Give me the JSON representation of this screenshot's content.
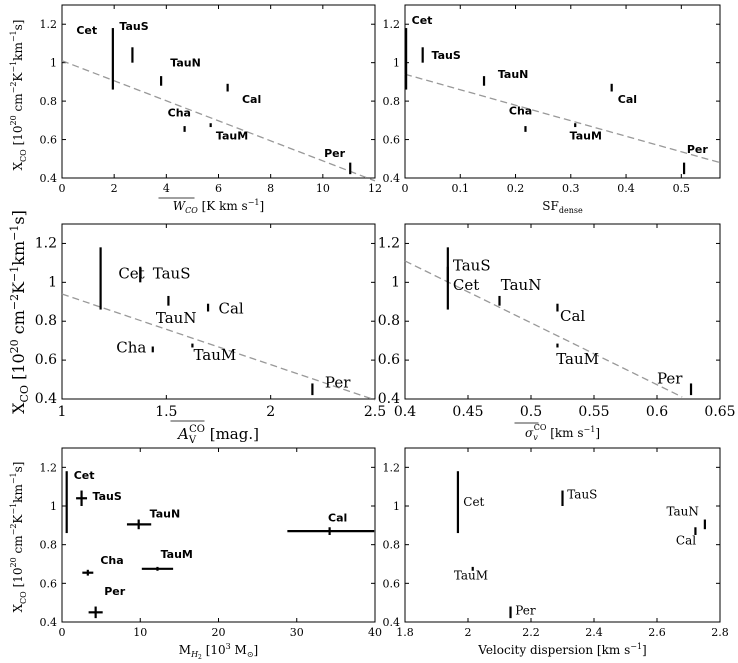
{
  "chart_data": [
    {
      "type": "scatter",
      "panel": "a",
      "ylabel": "X_CO [10^20 cm^-2 K^-1 km^-1 s]",
      "xlabel": "W_CO [K km s^-1]",
      "xlim": [
        0,
        12
      ],
      "ylim": [
        0.4,
        1.3
      ],
      "xticks": [
        0,
        2,
        4,
        6,
        8,
        10,
        12
      ],
      "yticks": [
        0.4,
        0.6,
        0.8,
        1,
        1.2
      ],
      "label_style": "sans-bold",
      "points": [
        {
          "name": "Cet",
          "x": 1.95,
          "y": 1.02,
          "yerr": [
            0.86,
            1.18
          ]
        },
        {
          "name": "TauS",
          "x": 2.7,
          "y": 1.04,
          "yerr": [
            1.0,
            1.08
          ]
        },
        {
          "name": "TauN",
          "x": 3.8,
          "y": 0.905,
          "yerr": [
            0.88,
            0.93
          ]
        },
        {
          "name": "Cal",
          "x": 6.35,
          "y": 0.87,
          "yerr": [
            0.85,
            0.89
          ]
        },
        {
          "name": "Cha",
          "x": 4.7,
          "y": 0.655,
          "yerr": [
            0.64,
            0.67
          ]
        },
        {
          "name": "TauM",
          "x": 5.7,
          "y": 0.675,
          "yerr": [
            0.665,
            0.685
          ]
        },
        {
          "name": "Per",
          "x": 11.05,
          "y": 0.45,
          "yerr": [
            0.42,
            0.48
          ]
        }
      ],
      "labels": [
        {
          "text": "Cet",
          "x": 0.55,
          "y": 1.15
        },
        {
          "text": "TauS",
          "x": 2.2,
          "y": 1.17
        },
        {
          "text": "TauN",
          "x": 4.15,
          "y": 0.98
        },
        {
          "text": "Cal",
          "x": 6.9,
          "y": 0.79
        },
        {
          "text": "Cha",
          "x": 4.05,
          "y": 0.72
        },
        {
          "text": "TauM",
          "x": 5.9,
          "y": 0.6
        },
        {
          "text": "Per",
          "x": 10.05,
          "y": 0.51
        }
      ],
      "trend": {
        "x": [
          0,
          12
        ],
        "y": [
          1.01,
          0.385
        ]
      }
    },
    {
      "type": "scatter",
      "panel": "b",
      "xlabel": "SF_dense",
      "xlim": [
        0,
        0.57
      ],
      "ylim": [
        0.4,
        1.3
      ],
      "xticks": [
        0,
        0.1,
        0.2,
        0.3,
        0.4,
        0.5
      ],
      "yticks": [
        0.4,
        0.6,
        0.8,
        1,
        1.2
      ],
      "label_style": "sans-bold",
      "points": [
        {
          "name": "Cet",
          "x": 0.002,
          "y": 1.02,
          "yerr": [
            0.86,
            1.18
          ]
        },
        {
          "name": "TauS",
          "x": 0.032,
          "y": 1.04,
          "yerr": [
            1.0,
            1.08
          ]
        },
        {
          "name": "TauN",
          "x": 0.143,
          "y": 0.905,
          "yerr": [
            0.88,
            0.93
          ]
        },
        {
          "name": "Cal",
          "x": 0.374,
          "y": 0.87,
          "yerr": [
            0.85,
            0.89
          ]
        },
        {
          "name": "Cha",
          "x": 0.218,
          "y": 0.655,
          "yerr": [
            0.64,
            0.67
          ]
        },
        {
          "name": "TauM",
          "x": 0.308,
          "y": 0.675,
          "yerr": [
            0.665,
            0.685
          ]
        },
        {
          "name": "Per",
          "x": 0.505,
          "y": 0.45,
          "yerr": [
            0.42,
            0.48
          ]
        }
      ],
      "labels": [
        {
          "text": "Cet",
          "x": 0.012,
          "y": 1.2
        },
        {
          "text": "TauS",
          "x": 0.048,
          "y": 1.02
        },
        {
          "text": "TauN",
          "x": 0.168,
          "y": 0.92
        },
        {
          "text": "Cal",
          "x": 0.385,
          "y": 0.79
        },
        {
          "text": "Cha",
          "x": 0.188,
          "y": 0.73
        },
        {
          "text": "TauM",
          "x": 0.298,
          "y": 0.6
        },
        {
          "text": "Per",
          "x": 0.51,
          "y": 0.53
        }
      ],
      "trend": {
        "x": [
          0,
          0.57
        ],
        "y": [
          0.94,
          0.48
        ]
      }
    },
    {
      "type": "scatter",
      "panel": "c",
      "ylabel": "X_CO [10^20 cm^-2 K^-1 km^-1 s]",
      "xlabel": "A_V^CO [mag.]",
      "xlim": [
        1,
        2.5
      ],
      "ylim": [
        0.4,
        1.3
      ],
      "xticks": [
        1,
        1.5,
        2,
        2.5
      ],
      "yticks": [
        0.4,
        0.6,
        0.8,
        1,
        1.2
      ],
      "label_style": "serif",
      "points": [
        {
          "name": "Cet",
          "x": 1.185,
          "y": 1.02,
          "yerr": [
            0.86,
            1.18
          ]
        },
        {
          "name": "TauS",
          "x": 1.375,
          "y": 1.04,
          "yerr": [
            1.0,
            1.08
          ]
        },
        {
          "name": "TauN",
          "x": 1.51,
          "y": 0.905,
          "yerr": [
            0.88,
            0.93
          ]
        },
        {
          "name": "Cal",
          "x": 1.7,
          "y": 0.87,
          "yerr": [
            0.85,
            0.89
          ]
        },
        {
          "name": "Cha",
          "x": 1.435,
          "y": 0.655,
          "yerr": [
            0.64,
            0.67
          ]
        },
        {
          "name": "TauM",
          "x": 1.625,
          "y": 0.675,
          "yerr": [
            0.665,
            0.685
          ]
        },
        {
          "name": "Per",
          "x": 2.2,
          "y": 0.45,
          "yerr": [
            0.42,
            0.48
          ]
        }
      ],
      "labels": [
        {
          "text": "Cet",
          "x": 1.27,
          "y": 1.02
        },
        {
          "text": "TauS",
          "x": 1.435,
          "y": 1.02
        },
        {
          "text": "TauN",
          "x": 1.45,
          "y": 0.79
        },
        {
          "text": "Cal",
          "x": 1.75,
          "y": 0.84
        },
        {
          "text": "Cha",
          "x": 1.26,
          "y": 0.64
        },
        {
          "text": "TauM",
          "x": 1.63,
          "y": 0.6
        },
        {
          "text": "Per",
          "x": 2.26,
          "y": 0.46
        }
      ],
      "trend": {
        "x": [
          1,
          2.5
        ],
        "y": [
          0.94,
          0.395
        ]
      }
    },
    {
      "type": "scatter",
      "panel": "d",
      "xlabel": "σ_v^CO [km s^-1]",
      "xlim": [
        0.4,
        0.65
      ],
      "ylim": [
        0.4,
        1.3
      ],
      "xticks": [
        0.4,
        0.45,
        0.5,
        0.55,
        0.6,
        0.65
      ],
      "yticks": [
        0.4,
        0.6,
        0.8,
        1,
        1.2
      ],
      "label_style": "serif",
      "points": [
        {
          "name": "Cet",
          "x": 0.434,
          "y": 1.02,
          "yerr": [
            0.86,
            1.18
          ]
        },
        {
          "name": "TauS",
          "x": 0.434,
          "y": 1.04,
          "yerr": [
            1.0,
            1.08
          ]
        },
        {
          "name": "TauN",
          "x": 0.475,
          "y": 0.905,
          "yerr": [
            0.88,
            0.93
          ]
        },
        {
          "name": "Cal",
          "x": 0.521,
          "y": 0.87,
          "yerr": [
            0.85,
            0.89
          ]
        },
        {
          "name": "TauM",
          "x": 0.521,
          "y": 0.675,
          "yerr": [
            0.665,
            0.685
          ]
        },
        {
          "name": "Per",
          "x": 0.627,
          "y": 0.45,
          "yerr": [
            0.42,
            0.48
          ]
        }
      ],
      "labels": [
        {
          "text": "TauS",
          "x": 0.438,
          "y": 1.06
        },
        {
          "text": "Cet",
          "x": 0.438,
          "y": 0.96
        },
        {
          "text": "TauN",
          "x": 0.476,
          "y": 0.96
        },
        {
          "text": "Cal",
          "x": 0.523,
          "y": 0.8
        },
        {
          "text": "TauM",
          "x": 0.52,
          "y": 0.58
        },
        {
          "text": "Per",
          "x": 0.6,
          "y": 0.48
        }
      ],
      "trend": {
        "x": [
          0.4,
          0.62
        ],
        "y": [
          1.11,
          0.41
        ]
      }
    },
    {
      "type": "scatter",
      "panel": "e",
      "ylabel": "X_CO [10^20 cm^-2 K^-1 km^-1 s]",
      "xlabel": "M_H2 [10^3 M_⊙]",
      "xlim": [
        0,
        40
      ],
      "ylim": [
        0.4,
        1.3
      ],
      "xticks": [
        0,
        10,
        20,
        30,
        40
      ],
      "yticks": [
        0.4,
        0.6,
        0.8,
        1,
        1.2
      ],
      "label_style": "sans-bold",
      "points": [
        {
          "name": "Cet",
          "x": 0.6,
          "y": 1.02,
          "yerr": [
            0.86,
            1.18
          ],
          "xerr": [
            0.6,
            0.6
          ]
        },
        {
          "name": "TauS",
          "x": 2.5,
          "y": 1.04,
          "yerr": [
            1.0,
            1.08
          ],
          "xerr": [
            1.8,
            3.2
          ]
        },
        {
          "name": "TauN",
          "x": 9.8,
          "y": 0.905,
          "yerr": [
            0.88,
            0.93
          ],
          "xerr": [
            8.3,
            11.4
          ]
        },
        {
          "name": "Cal",
          "x": 34.2,
          "y": 0.87,
          "yerr": [
            0.85,
            0.89
          ],
          "xerr": [
            28.8,
            39.9
          ]
        },
        {
          "name": "Cha",
          "x": 3.3,
          "y": 0.655,
          "yerr": [
            0.64,
            0.67
          ],
          "xerr": [
            2.6,
            4.0
          ]
        },
        {
          "name": "TauM",
          "x": 12.2,
          "y": 0.675,
          "yerr": [
            0.665,
            0.685
          ],
          "xerr": [
            10.2,
            14.2
          ]
        },
        {
          "name": "Per",
          "x": 4.3,
          "y": 0.45,
          "yerr": [
            0.42,
            0.48
          ],
          "xerr": [
            3.4,
            5.2
          ]
        }
      ],
      "labels": [
        {
          "text": "Cet",
          "x": 1.5,
          "y": 1.14
        },
        {
          "text": "TauS",
          "x": 3.9,
          "y": 1.03
        },
        {
          "text": "TauN",
          "x": 11.2,
          "y": 0.94
        },
        {
          "text": "Cal",
          "x": 34.0,
          "y": 0.92
        },
        {
          "text": "Cha",
          "x": 4.9,
          "y": 0.7
        },
        {
          "text": "TauM",
          "x": 12.6,
          "y": 0.73
        },
        {
          "text": "Per",
          "x": 5.4,
          "y": 0.54
        }
      ]
    },
    {
      "type": "scatter",
      "panel": "f",
      "xlabel": "Velocity dispersion [km s^-1]",
      "xlim": [
        1.8,
        2.8
      ],
      "ylim": [
        0.4,
        1.3
      ],
      "xticks": [
        1.8,
        2,
        2.2,
        2.4,
        2.6,
        2.8
      ],
      "yticks": [
        0.4,
        0.6,
        0.8,
        1,
        1.2
      ],
      "label_style": "serif",
      "points": [
        {
          "name": "Cet",
          "x": 1.968,
          "y": 1.02,
          "yerr": [
            0.86,
            1.18
          ]
        },
        {
          "name": "TauS",
          "x": 2.3,
          "y": 1.04,
          "yerr": [
            1.0,
            1.08
          ]
        },
        {
          "name": "TauN",
          "x": 2.752,
          "y": 0.905,
          "yerr": [
            0.88,
            0.93
          ]
        },
        {
          "name": "Cal",
          "x": 2.722,
          "y": 0.87,
          "yerr": [
            0.85,
            0.89
          ]
        },
        {
          "name": "TauM",
          "x": 2.015,
          "y": 0.675,
          "yerr": [
            0.665,
            0.685
          ]
        },
        {
          "name": "Per",
          "x": 2.135,
          "y": 0.45,
          "yerr": [
            0.42,
            0.48
          ]
        }
      ],
      "labels": [
        {
          "text": "Cet",
          "x": 1.985,
          "y": 1.0
        },
        {
          "text": "TauS",
          "x": 2.315,
          "y": 1.04
        },
        {
          "text": "TauN",
          "x": 2.63,
          "y": 0.95
        },
        {
          "text": "Cal",
          "x": 2.66,
          "y": 0.8
        },
        {
          "text": "TauM",
          "x": 1.955,
          "y": 0.62
        },
        {
          "text": "Per",
          "x": 2.15,
          "y": 0.44
        }
      ]
    }
  ]
}
